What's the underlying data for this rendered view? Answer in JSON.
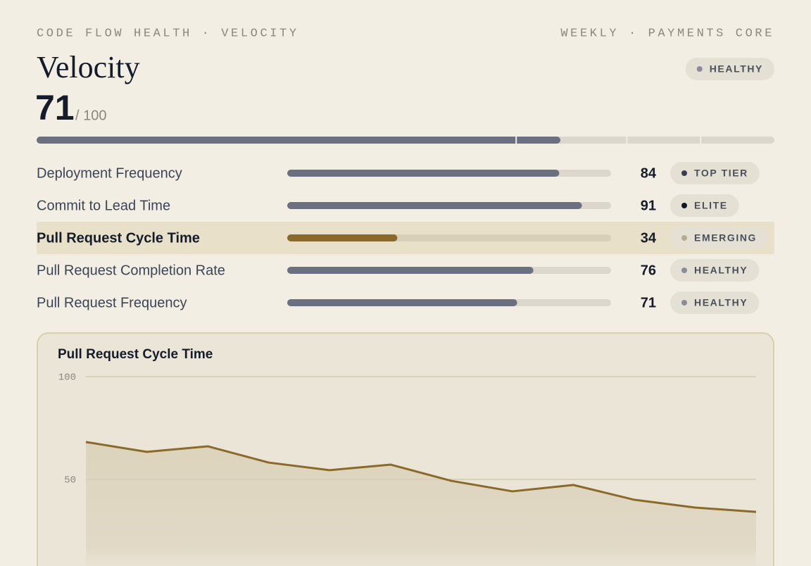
{
  "header": {
    "eyebrow": "CODE FLOW HEALTH · VELOCITY",
    "context": "WEEKLY · PAYMENTS CORE",
    "title": "Velocity",
    "status": "HEALTHY"
  },
  "score": {
    "value": 71,
    "max_label": "/ 100",
    "scale_max": 100,
    "thresholds": [
      65,
      80,
      90
    ]
  },
  "metrics": [
    {
      "name": "Deployment Frequency",
      "value": 84,
      "tier": "TOP TIER",
      "dot": "#3a3f50",
      "highlight": false
    },
    {
      "name": "Commit to Lead Time",
      "value": 91,
      "tier": "ELITE",
      "dot": "#101828",
      "highlight": false
    },
    {
      "name": "Pull Request Cycle Time",
      "value": 34,
      "tier": "EMERGING",
      "dot": "#b3ab93",
      "highlight": true
    },
    {
      "name": "Pull Request Completion Rate",
      "value": 76,
      "tier": "HEALTHY",
      "dot": "#8a8d99",
      "highlight": false
    },
    {
      "name": "Pull Request Frequency",
      "value": 71,
      "tier": "HEALTHY",
      "dot": "#8a8d99",
      "highlight": false
    }
  ],
  "chart_data": {
    "type": "line",
    "title": "Pull Request Cycle Time",
    "categories": [
      null,
      null,
      null,
      null,
      null,
      null,
      null,
      null,
      null,
      null,
      null,
      null
    ],
    "values": [
      68.2,
      63.4,
      66.1,
      58.2,
      54.5,
      57.2,
      49.3,
      44.2,
      47.3,
      40.1,
      36.3,
      34.2
    ],
    "color": "#8a6a2a",
    "ylim": [
      0,
      100
    ],
    "yticks": [
      50,
      100
    ],
    "grid": true
  }
}
